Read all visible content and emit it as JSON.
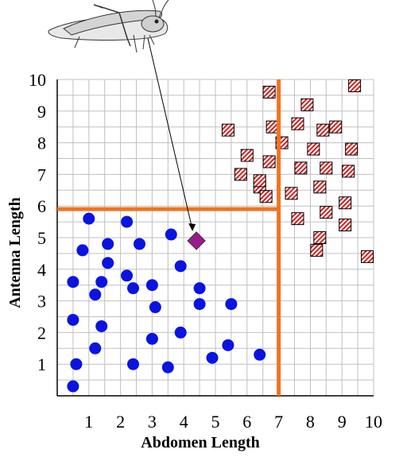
{
  "chart_data": {
    "type": "scatter",
    "xlabel": "Abdomen Length",
    "ylabel": "Antenna Length",
    "xlim": [
      0,
      10
    ],
    "ylim": [
      0,
      10
    ],
    "x_ticks": [
      "1",
      "2",
      "3",
      "4",
      "5",
      "6",
      "7",
      "8",
      "9",
      "10"
    ],
    "y_ticks": [
      "1",
      "2",
      "3",
      "4",
      "5",
      "6",
      "7",
      "8",
      "9",
      "10"
    ],
    "grid": true,
    "dividers": {
      "vertical_x": 7.0,
      "horizontal_y": 5.9,
      "horizontal_x_max": 7.0
    },
    "colors": {
      "series_a": "#0a14e0",
      "series_b_fill": "#cc2222",
      "query": "#9b1b8e",
      "divider": "#f07420",
      "grid": "#c0c0c0"
    },
    "series": [
      {
        "marker": "circle",
        "points": [
          [
            0.5,
            0.3
          ],
          [
            0.6,
            1.0
          ],
          [
            0.5,
            2.4
          ],
          [
            0.5,
            3.6
          ],
          [
            0.8,
            4.6
          ],
          [
            1.0,
            5.6
          ],
          [
            1.2,
            1.5
          ],
          [
            1.2,
            3.2
          ],
          [
            1.4,
            3.6
          ],
          [
            1.4,
            2.2
          ],
          [
            1.6,
            4.2
          ],
          [
            1.6,
            4.8
          ],
          [
            2.2,
            3.8
          ],
          [
            2.2,
            5.5
          ],
          [
            2.4,
            3.4
          ],
          [
            2.4,
            1.0
          ],
          [
            2.6,
            4.8
          ],
          [
            3.0,
            1.8
          ],
          [
            3.0,
            3.5
          ],
          [
            3.1,
            2.8
          ],
          [
            3.5,
            0.9
          ],
          [
            3.6,
            5.1
          ],
          [
            3.9,
            2.0
          ],
          [
            3.9,
            4.1
          ],
          [
            4.5,
            2.9
          ],
          [
            4.5,
            3.4
          ],
          [
            4.9,
            1.2
          ],
          [
            5.4,
            1.6
          ],
          [
            5.5,
            2.9
          ],
          [
            6.4,
            1.3
          ]
        ]
      },
      {
        "marker": "hatched-square",
        "points": [
          [
            5.4,
            8.4
          ],
          [
            5.8,
            7.0
          ],
          [
            6.0,
            7.6
          ],
          [
            6.4,
            6.6
          ],
          [
            6.4,
            6.8
          ],
          [
            6.6,
            6.3
          ],
          [
            6.7,
            7.4
          ],
          [
            6.7,
            9.6
          ],
          [
            6.8,
            8.5
          ],
          [
            7.1,
            8.0
          ],
          [
            7.4,
            6.4
          ],
          [
            7.6,
            5.6
          ],
          [
            7.6,
            8.6
          ],
          [
            7.7,
            7.2
          ],
          [
            7.9,
            9.2
          ],
          [
            8.1,
            7.8
          ],
          [
            8.2,
            4.6
          ],
          [
            8.3,
            5.0
          ],
          [
            8.3,
            6.6
          ],
          [
            8.4,
            8.4
          ],
          [
            8.5,
            5.8
          ],
          [
            8.5,
            7.2
          ],
          [
            8.8,
            8.5
          ],
          [
            9.1,
            5.4
          ],
          [
            9.1,
            6.1
          ],
          [
            9.2,
            7.1
          ],
          [
            9.3,
            7.8
          ],
          [
            9.4,
            9.8
          ],
          [
            9.8,
            4.4
          ]
        ]
      }
    ],
    "query_point": {
      "marker": "diamond",
      "x": 4.4,
      "y": 4.9
    }
  }
}
